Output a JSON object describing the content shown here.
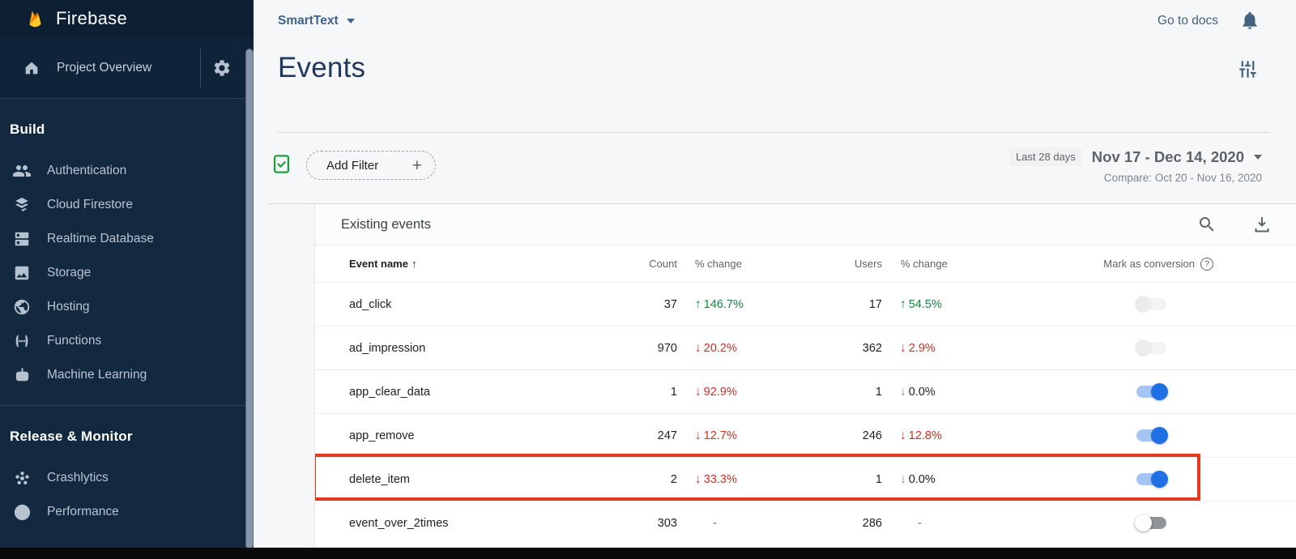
{
  "brand": {
    "name": "Firebase"
  },
  "sidebar": {
    "project_overview": "Project Overview",
    "sections": [
      {
        "label": "Build",
        "items": [
          {
            "icon": "people-icon",
            "label": "Authentication"
          },
          {
            "icon": "firestore-icon",
            "label": "Cloud Firestore"
          },
          {
            "icon": "database-icon",
            "label": "Realtime Database"
          },
          {
            "icon": "storage-icon",
            "label": "Storage"
          },
          {
            "icon": "hosting-icon",
            "label": "Hosting"
          },
          {
            "icon": "functions-icon",
            "label": "Functions"
          },
          {
            "icon": "ml-icon",
            "label": "Machine Learning"
          }
        ]
      },
      {
        "label": "Release & Monitor",
        "items": [
          {
            "icon": "crashlytics-icon",
            "label": "Crashlytics"
          },
          {
            "icon": "performance-icon",
            "label": "Performance"
          }
        ]
      }
    ]
  },
  "header": {
    "project_selector": "SmartText",
    "go_to_docs": "Go to docs"
  },
  "page": {
    "title": "Events"
  },
  "filters": {
    "add_filter": "Add Filter",
    "range_label": "Last 28 days",
    "range_value": "Nov 17 - Dec 14, 2020",
    "compare": "Compare: Oct 20 - Nov 16, 2020"
  },
  "table": {
    "title": "Existing events",
    "columns": [
      "Event name",
      "Count",
      "% change",
      "Users",
      "% change",
      "Mark as conversion"
    ],
    "rows": [
      {
        "name": "ad_click",
        "count": "37",
        "count_change": {
          "dir": "up",
          "value": "146.7%",
          "tone": "positive"
        },
        "users": "17",
        "users_change": {
          "dir": "up",
          "value": "54.5%",
          "tone": "positive"
        },
        "toggle": "disabled-off",
        "highlighted": false
      },
      {
        "name": "ad_impression",
        "count": "970",
        "count_change": {
          "dir": "down",
          "value": "20.2%",
          "tone": "negative"
        },
        "users": "362",
        "users_change": {
          "dir": "down",
          "value": "2.9%",
          "tone": "negative"
        },
        "toggle": "disabled-off",
        "highlighted": false
      },
      {
        "name": "app_clear_data",
        "count": "1",
        "count_change": {
          "dir": "down",
          "value": "92.9%",
          "tone": "negative"
        },
        "users": "1",
        "users_change": {
          "dir": "down",
          "value": "0.0%",
          "tone": "neutral"
        },
        "toggle": "on",
        "highlighted": false
      },
      {
        "name": "app_remove",
        "count": "247",
        "count_change": {
          "dir": "down",
          "value": "12.7%",
          "tone": "negative"
        },
        "users": "246",
        "users_change": {
          "dir": "down",
          "value": "12.8%",
          "tone": "negative"
        },
        "toggle": "on",
        "highlighted": false
      },
      {
        "name": "delete_item",
        "count": "2",
        "count_change": {
          "dir": "down",
          "value": "33.3%",
          "tone": "negative"
        },
        "users": "1",
        "users_change": {
          "dir": "down",
          "value": "0.0%",
          "tone": "neutral"
        },
        "toggle": "on",
        "highlighted": true
      },
      {
        "name": "event_over_2times",
        "count": "303",
        "count_change": {
          "dir": null,
          "value": "-",
          "tone": "none"
        },
        "users": "286",
        "users_change": {
          "dir": null,
          "value": "-",
          "tone": "none"
        },
        "toggle": "off",
        "highlighted": false
      }
    ]
  },
  "colors": {
    "sidebar_bg": "#13293f",
    "sidebar_header_bg": "#0c1f33",
    "accent_blue": "#1f6fe5",
    "toggle_track_on": "#a5c6f4",
    "positive": "#12853e",
    "negative": "#d23025",
    "highlight_red": "#e63a1f",
    "brand_flame_orange": "#ffa000",
    "brand_flame_yellow": "#ffca28"
  }
}
